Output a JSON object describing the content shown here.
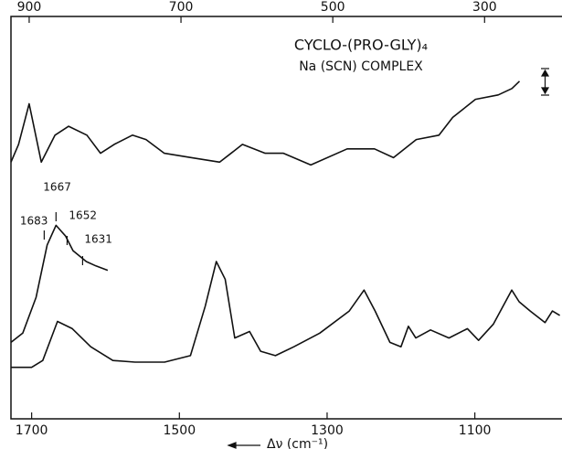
{
  "chart_data": {
    "type": "line",
    "title": "CYCLO-(PRO-GLY)₄",
    "subtitle": "Na (SCN) COMPLEX",
    "x_label": "Δν (cm⁻¹)",
    "xlim": [
      1728,
      982
    ],
    "xticks": [
      1700,
      1500,
      1300,
      1100
    ],
    "x2lim": [
      924,
      198
    ],
    "x2ticks": [
      900,
      700,
      500,
      300
    ],
    "ylim": [
      0,
      100
    ],
    "peak_labels": [
      1683,
      1667,
      1652,
      1631
    ],
    "series": [
      {
        "axis": "x2",
        "color": "#111111",
        "x": [
          924,
          914,
          900,
          884,
          866,
          848,
          824,
          806,
          788,
          764,
          746,
          722,
          686,
          649,
          619,
          589,
          565,
          529,
          481,
          445,
          420,
          390,
          360,
          342,
          312,
          282,
          264,
          254
        ],
        "values": [
          63.8,
          68.2,
          78.3,
          63.8,
          70.5,
          72.7,
          70.5,
          66,
          68.2,
          70.5,
          69.4,
          66,
          64.9,
          63.8,
          68.2,
          66,
          66,
          63.1,
          67.1,
          67.1,
          64.9,
          69.4,
          70.5,
          74.9,
          79.4,
          80.5,
          82.1,
          83.9
        ]
      },
      {
        "color": "#111111",
        "x": [
          1728,
          1712,
          1694,
          1679,
          1667,
          1654,
          1644,
          1626,
          1613,
          1597
        ],
        "values": [
          19,
          21.3,
          30.2,
          43.2,
          48.1,
          45.4,
          41.8,
          39.1,
          38,
          36.9
        ]
      },
      {
        "color": "#111111",
        "x": [
          1728,
          1700,
          1685,
          1665,
          1645,
          1620,
          1590,
          1560,
          1520,
          1485,
          1465,
          1450,
          1438,
          1425,
          1405,
          1390,
          1370,
          1345,
          1310,
          1270,
          1250,
          1235,
          1215,
          1200,
          1190,
          1180,
          1160,
          1135,
          1110,
          1095,
          1075,
          1050,
          1040,
          1025,
          1005,
          995,
          985
        ],
        "values": [
          12.8,
          12.8,
          14.5,
          24.2,
          22.4,
          17.9,
          14.5,
          14.1,
          14.1,
          15.7,
          28,
          39.1,
          34.7,
          20.1,
          21.7,
          16.8,
          15.7,
          17.9,
          21.3,
          26.8,
          32,
          26.8,
          19,
          17.9,
          23,
          20.1,
          22.1,
          20.1,
          22.4,
          19.5,
          23.5,
          32,
          29.1,
          26.8,
          23.9,
          26.8,
          25.7
        ]
      }
    ]
  }
}
